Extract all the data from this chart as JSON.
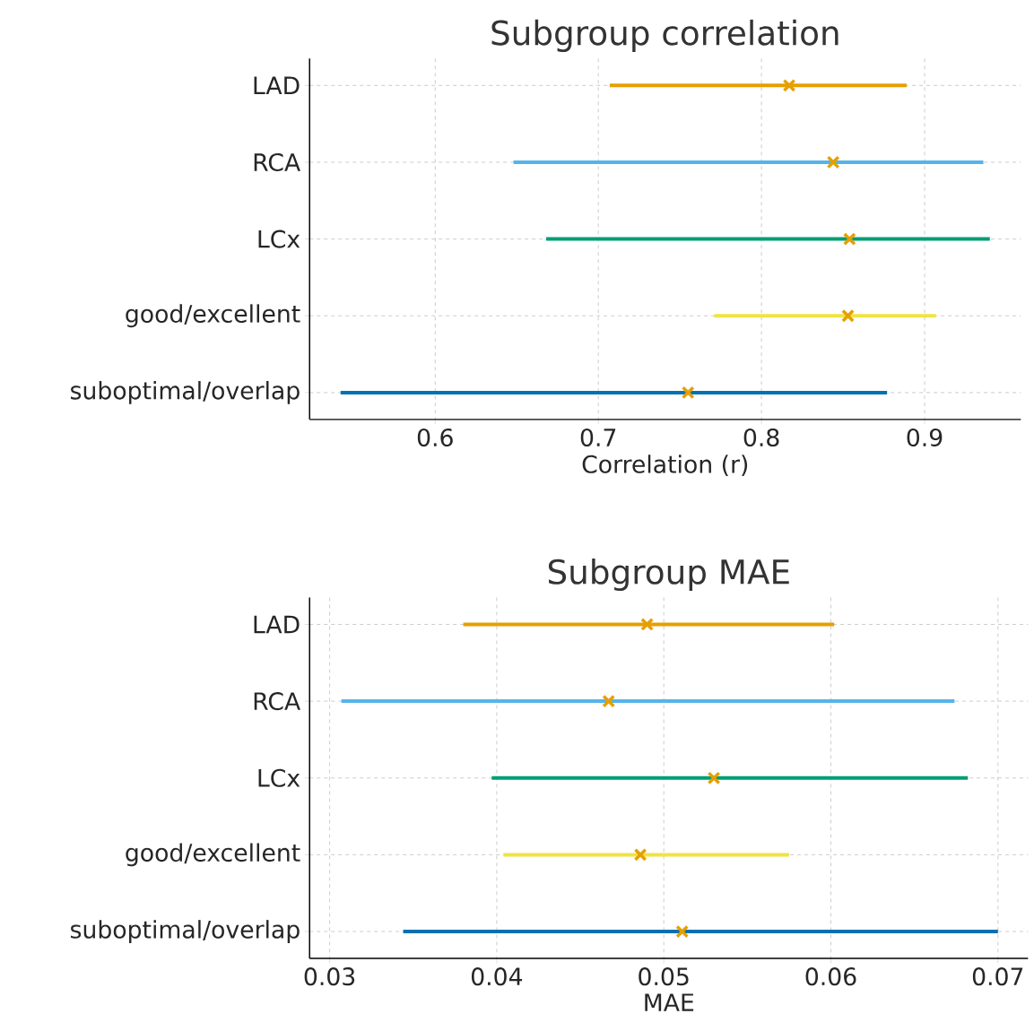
{
  "chart_data": [
    {
      "type": "bar",
      "orientation": "horizontal",
      "title": "Subgroup correlation",
      "xlabel": "Correlation (r)",
      "categories": [
        "LAD",
        "RCA",
        "LCx",
        "good/excellent",
        "suboptimal/overlap"
      ],
      "xlim": [
        0.523,
        0.959
      ],
      "xticks": [
        0.6,
        0.7,
        0.8,
        0.9
      ],
      "grid": true,
      "marker": "cross",
      "series": [
        {
          "base": [
            0.707,
            0.648,
            0.668,
            0.771,
            0.542
          ],
          "values": [
            0.182,
            0.288,
            0.272,
            0.136,
            0.335
          ],
          "colors": [
            "#e69f00",
            "#56b4e9",
            "#009e73",
            "#f0e442",
            "#0072b2"
          ]
        },
        {
          "type": "scatter",
          "values": [
            0.817,
            0.844,
            0.854,
            0.853,
            0.755
          ],
          "color": "#e69f00"
        }
      ]
    },
    {
      "type": "bar",
      "orientation": "horizontal",
      "title": "Subgroup MAE",
      "xlabel": "MAE",
      "categories": [
        "LAD",
        "RCA",
        "LCx",
        "good/excellent",
        "suboptimal/overlap"
      ],
      "xlim": [
        0.0288,
        0.0718
      ],
      "xticks": [
        0.03,
        0.04,
        0.05,
        0.06,
        0.07
      ],
      "grid": true,
      "marker": "cross",
      "series": [
        {
          "base": [
            0.038,
            0.0307,
            0.0397,
            0.0404,
            0.0344
          ],
          "values": [
            0.0222,
            0.0367,
            0.0285,
            0.0171,
            0.0356
          ],
          "colors": [
            "#e69f00",
            "#56b4e9",
            "#009e73",
            "#f0e442",
            "#0072b2"
          ]
        },
        {
          "type": "scatter",
          "values": [
            0.049,
            0.0467,
            0.053,
            0.0486,
            0.0511
          ],
          "color": "#e69f00"
        }
      ]
    }
  ]
}
